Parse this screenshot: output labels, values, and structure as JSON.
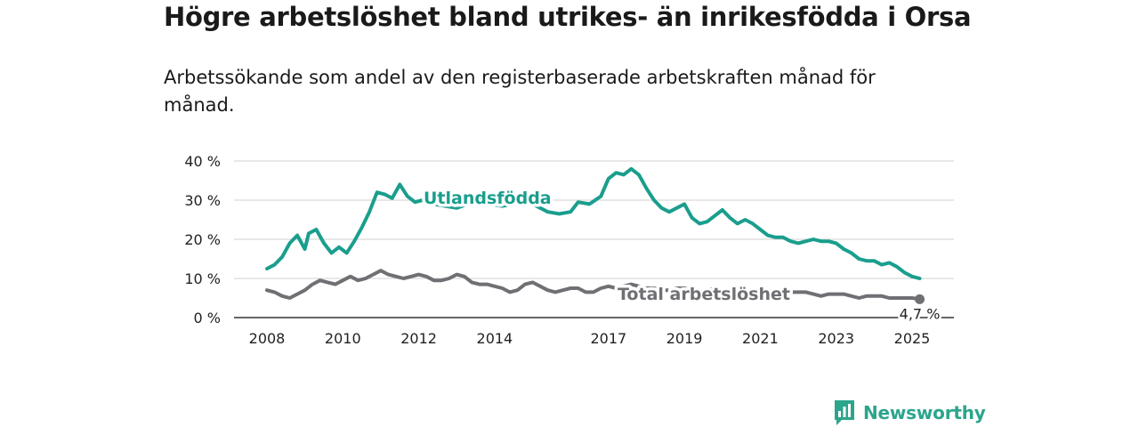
{
  "title": "Högre arbetslöshet bland utrikes- än inrikesfödda i Orsa",
  "subtitle": "Arbetssökande som andel av den registerbaserade arbetskraften månad för månad.",
  "logo": {
    "text": "Newsworthy",
    "icon": "bar-chart-speech-bubble-icon"
  },
  "colors": {
    "utlandsfodda": "#1a9e8d",
    "total": "#6f6f74",
    "grid": "#d9d9d9",
    "axis": "#333333"
  },
  "chart_data": {
    "type": "line",
    "title": "Högre arbetslöshet bland utrikes- än inrikesfödda i Orsa",
    "subtitle": "Arbetssökande som andel av den registerbaserade arbetskraften månad för månad.",
    "xlabel": "",
    "ylabel": "",
    "ylim": [
      0,
      40
    ],
    "yticks": [
      0,
      10,
      20,
      30,
      40
    ],
    "ytick_labels": [
      "0 %",
      "10 %",
      "20 %",
      "30 %",
      "40 %"
    ],
    "xticks": [
      2008,
      2010,
      2012,
      2014,
      2017,
      2019,
      2021,
      2023,
      2025
    ],
    "xtick_labels": [
      "2008",
      "2010",
      "2012",
      "2014",
      "2017",
      "2019",
      "2021",
      "2023",
      "2025"
    ],
    "grid": true,
    "end_label": "4,7 %",
    "series": [
      {
        "name": "Utlandsfödda",
        "label": "Utlandsfödda",
        "color": "#1a9e8d",
        "x": [
          2008.0,
          2008.2,
          2008.4,
          2008.6,
          2008.8,
          2009.0,
          2009.1,
          2009.3,
          2009.5,
          2009.7,
          2009.9,
          2010.1,
          2010.3,
          2010.5,
          2010.7,
          2010.9,
          2011.1,
          2011.3,
          2011.5,
          2011.7,
          2011.9,
          2012.1,
          2012.4,
          2012.7,
          2013.0,
          2013.3,
          2013.6,
          2013.9,
          2014.2,
          2014.5,
          2014.8,
          2015.1,
          2015.4,
          2015.7,
          2016.0,
          2016.2,
          2016.5,
          2016.8,
          2017.0,
          2017.2,
          2017.4,
          2017.6,
          2017.8,
          2018.0,
          2018.2,
          2018.4,
          2018.6,
          2018.8,
          2019.0,
          2019.2,
          2019.4,
          2019.6,
          2019.8,
          2020.0,
          2020.2,
          2020.4,
          2020.6,
          2020.8,
          2021.0,
          2021.2,
          2021.4,
          2021.6,
          2021.8,
          2022.0,
          2022.2,
          2022.4,
          2022.6,
          2022.8,
          2023.0,
          2023.2,
          2023.4,
          2023.6,
          2023.8,
          2024.0,
          2024.2,
          2024.4,
          2024.6,
          2024.8,
          2025.0,
          2025.2
        ],
        "values": [
          12.5,
          13.5,
          15.5,
          19,
          21,
          17.5,
          21.5,
          22.5,
          19,
          16.5,
          18,
          16.5,
          19.5,
          23,
          27,
          32,
          31.5,
          30.5,
          34,
          31,
          29.5,
          30,
          29,
          28.5,
          28,
          29,
          30,
          29,
          28.5,
          29,
          30,
          28.5,
          27,
          26.5,
          27,
          29.5,
          29,
          31,
          35.5,
          37,
          36.5,
          38,
          36.5,
          33,
          30,
          28,
          27,
          28,
          29,
          25.5,
          24,
          24.5,
          26,
          27.5,
          25.5,
          24,
          25,
          24,
          22.5,
          21,
          20.5,
          20.5,
          19.5,
          19,
          19.5,
          20,
          19.5,
          19.5,
          19,
          17.5,
          16.5,
          15,
          14.5,
          14.5,
          13.5,
          14,
          13,
          11.5,
          10.5,
          10
        ]
      },
      {
        "name": "Total arbetslöshet",
        "label": "Total arbetslöshet",
        "color": "#6f6f74",
        "x": [
          2008.0,
          2008.2,
          2008.4,
          2008.6,
          2008.8,
          2009.0,
          2009.2,
          2009.4,
          2009.6,
          2009.8,
          2010.0,
          2010.2,
          2010.4,
          2010.6,
          2010.8,
          2011.0,
          2011.2,
          2011.4,
          2011.6,
          2011.8,
          2012.0,
          2012.2,
          2012.4,
          2012.6,
          2012.8,
          2013.0,
          2013.2,
          2013.4,
          2013.6,
          2013.8,
          2014.0,
          2014.2,
          2014.4,
          2014.6,
          2014.8,
          2015.0,
          2015.2,
          2015.4,
          2015.6,
          2015.8,
          2016.0,
          2016.2,
          2016.4,
          2016.6,
          2016.8,
          2017.0,
          2017.2,
          2017.4,
          2017.6,
          2017.8,
          2018.0,
          2018.2,
          2018.4,
          2018.6,
          2018.8,
          2019.0,
          2019.2,
          2019.4,
          2019.6,
          2019.8,
          2020.0,
          2020.2,
          2020.4,
          2020.6,
          2020.8,
          2021.0,
          2021.2,
          2021.4,
          2021.6,
          2021.8,
          2022.0,
          2022.2,
          2022.4,
          2022.6,
          2022.8,
          2023.0,
          2023.2,
          2023.4,
          2023.6,
          2023.8,
          2024.0,
          2024.2,
          2024.4,
          2024.6,
          2024.8,
          2025.0,
          2025.2
        ],
        "values": [
          7,
          6.5,
          5.5,
          5,
          6,
          7,
          8.5,
          9.5,
          9,
          8.5,
          9.5,
          10.5,
          9.5,
          10,
          11,
          12,
          11,
          10.5,
          10,
          10.5,
          11,
          10.5,
          9.5,
          9.5,
          10,
          11,
          10.5,
          9,
          8.5,
          8.5,
          8,
          7.5,
          6.5,
          7,
          8.5,
          9,
          8,
          7,
          6.5,
          7,
          7.5,
          7.5,
          6.5,
          6.5,
          7.5,
          8,
          7.5,
          8,
          8.5,
          8,
          7.5,
          7.5,
          7,
          7,
          7.5,
          7.5,
          7,
          6.5,
          7,
          7.5,
          7,
          7,
          7,
          6.5,
          7,
          7,
          6.5,
          6.5,
          6.5,
          6.5,
          6.5,
          6.5,
          6,
          5.5,
          6,
          6,
          6,
          5.5,
          5,
          5.5,
          5.5,
          5.5,
          5,
          5,
          5,
          5,
          4.7
        ]
      }
    ]
  }
}
